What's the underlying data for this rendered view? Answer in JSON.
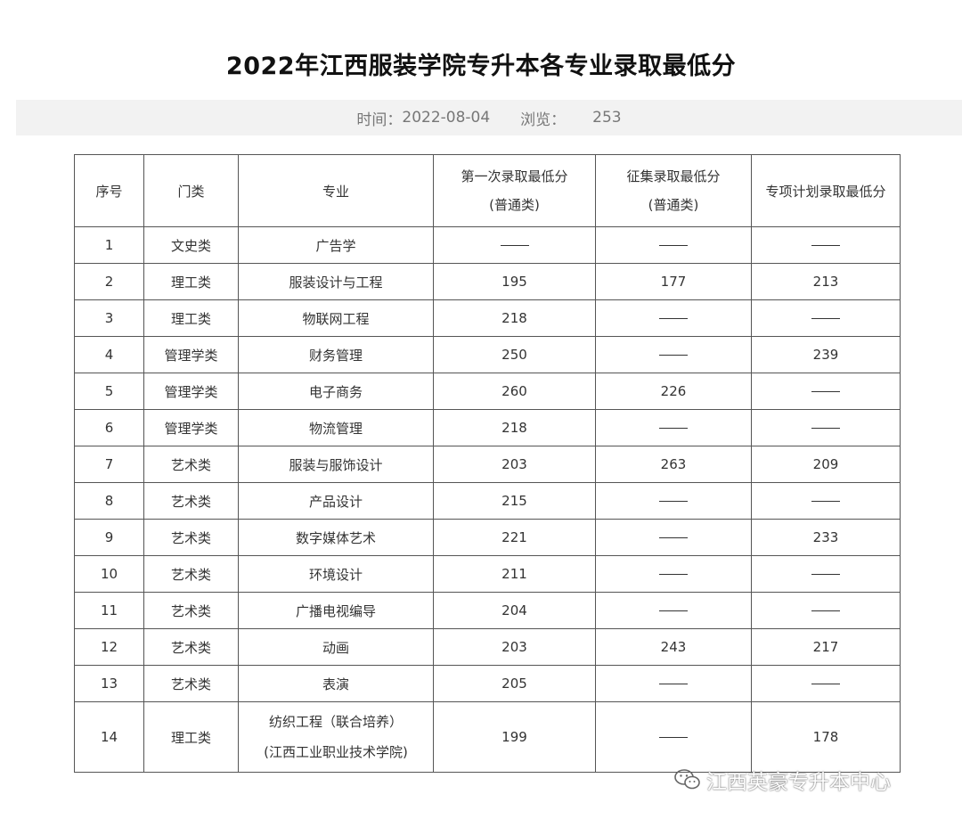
{
  "title": "2022年江西服装学院专升本各专业录取最低分",
  "meta": {
    "time_label": "时间：",
    "time_value": "2022-08-04",
    "views_label": "浏览：",
    "views_value": "253"
  },
  "table": {
    "headers": {
      "seq": "序号",
      "category": "门类",
      "major": "专业",
      "first_line1": "第一次录取最低分",
      "first_line2": "(普通类)",
      "supp_line1": "征集录取最低分",
      "supp_line2": "(普通类)",
      "special": "专项计划录取最低分"
    },
    "rows": [
      {
        "no": "1",
        "category": "文史类",
        "major": "广告学",
        "first": "——",
        "supp": "——",
        "special": "——"
      },
      {
        "no": "2",
        "category": "理工类",
        "major": "服装设计与工程",
        "first": "195",
        "supp": "177",
        "special": "213"
      },
      {
        "no": "3",
        "category": "理工类",
        "major": "物联网工程",
        "first": "218",
        "supp": "——",
        "special": "——"
      },
      {
        "no": "4",
        "category": "管理学类",
        "major": "财务管理",
        "first": "250",
        "supp": "——",
        "special": "239"
      },
      {
        "no": "5",
        "category": "管理学类",
        "major": "电子商务",
        "first": "260",
        "supp": "226",
        "special": "——"
      },
      {
        "no": "6",
        "category": "管理学类",
        "major": "物流管理",
        "first": "218",
        "supp": "——",
        "special": "——"
      },
      {
        "no": "7",
        "category": "艺术类",
        "major": "服装与服饰设计",
        "first": "203",
        "supp": "263",
        "special": "209"
      },
      {
        "no": "8",
        "category": "艺术类",
        "major": "产品设计",
        "first": "215",
        "supp": "——",
        "special": "——"
      },
      {
        "no": "9",
        "category": "艺术类",
        "major": "数字媒体艺术",
        "first": "221",
        "supp": "——",
        "special": "233"
      },
      {
        "no": "10",
        "category": "艺术类",
        "major": "环境设计",
        "first": "211",
        "supp": "——",
        "special": "——"
      },
      {
        "no": "11",
        "category": "艺术类",
        "major": "广播电视编导",
        "first": "204",
        "supp": "——",
        "special": "——"
      },
      {
        "no": "12",
        "category": "艺术类",
        "major": "动画",
        "first": "203",
        "supp": "243",
        "special": "217"
      },
      {
        "no": "13",
        "category": "艺术类",
        "major": "表演",
        "first": "205",
        "supp": "——",
        "special": "——"
      },
      {
        "no": "14",
        "category": "理工类",
        "major": "纺织工程（联合培养）",
        "major_line2": "(江西工业职业技术学院)",
        "first": "199",
        "supp": "——",
        "special": "178"
      }
    ]
  },
  "watermark": {
    "text": "江西英豪专升本中心",
    "icon": "wechat-icon"
  }
}
